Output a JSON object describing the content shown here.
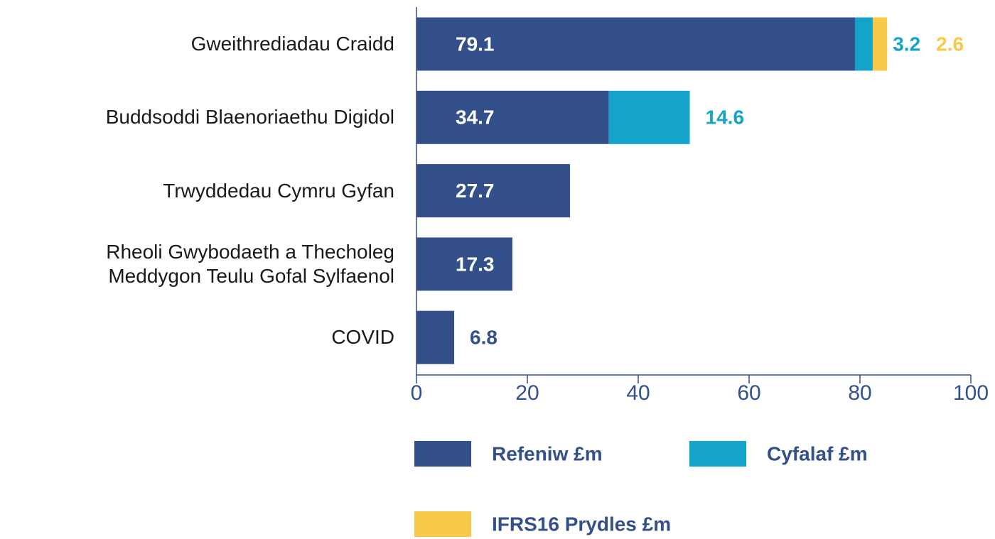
{
  "chart_data": {
    "type": "stacked-barh",
    "categories": [
      "Gweithrediadau Craidd",
      "Buddsoddi Blaenoriaethu Digidol",
      "Trwyddedau Cymru Gyfan",
      "Rheoli Gwybodaeth a Thecholeg Meddygon Teulu Gofal Sylfaenol",
      "COVID"
    ],
    "series": [
      {
        "name": "Refeniw £m",
        "color": "#33508a",
        "values": [
          79.1,
          34.7,
          27.7,
          17.3,
          6.8
        ]
      },
      {
        "name": "Cyfalaf £m",
        "color": "#14a3c9",
        "values": [
          3.2,
          14.6,
          null,
          null,
          null
        ]
      },
      {
        "name": "IFRS16 Prydles £m",
        "color": "#f7c948",
        "values": [
          2.6,
          null,
          null,
          null,
          null
        ]
      }
    ],
    "xlim": [
      0,
      100
    ],
    "xticks": [
      0,
      20,
      40,
      60,
      80,
      100
    ]
  }
}
